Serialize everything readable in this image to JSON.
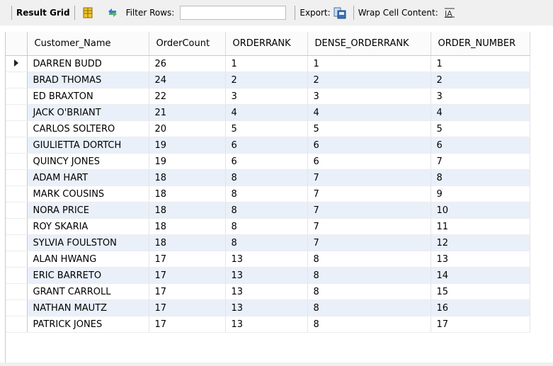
{
  "toolbar": {
    "result_grid_label": "Result Grid",
    "filter_rows_label": "Filter Rows:",
    "filter_rows_value": "",
    "export_label": "Export:",
    "wrap_cell_label": "Wrap Cell Content:",
    "icons": [
      "grid-icon",
      "refresh-icon",
      "export-icon",
      "wrap-text-icon"
    ]
  },
  "grid": {
    "columns": [
      "Customer_Name",
      "OrderCount",
      "ORDERRANK",
      "DENSE_ORDERRANK",
      "ORDER_NUMBER"
    ],
    "rows": [
      [
        "DARREN BUDD",
        "26",
        "1",
        "1",
        "1"
      ],
      [
        "BRAD THOMAS",
        "24",
        "2",
        "2",
        "2"
      ],
      [
        "ED BRAXTON",
        "22",
        "3",
        "3",
        "3"
      ],
      [
        "JACK O'BRIANT",
        "21",
        "4",
        "4",
        "4"
      ],
      [
        "CARLOS SOLTERO",
        "20",
        "5",
        "5",
        "5"
      ],
      [
        "GIULIETTA DORTCH",
        "19",
        "6",
        "6",
        "6"
      ],
      [
        "QUINCY JONES",
        "19",
        "6",
        "6",
        "7"
      ],
      [
        "ADAM HART",
        "18",
        "8",
        "7",
        "8"
      ],
      [
        "MARK COUSINS",
        "18",
        "8",
        "7",
        "9"
      ],
      [
        "NORA PRICE",
        "18",
        "8",
        "7",
        "10"
      ],
      [
        "ROY SKARIA",
        "18",
        "8",
        "7",
        "11"
      ],
      [
        "SYLVIA FOULSTON",
        "18",
        "8",
        "7",
        "12"
      ],
      [
        "ALAN HWANG",
        "17",
        "13",
        "8",
        "13"
      ],
      [
        "ERIC BARRETO",
        "17",
        "13",
        "8",
        "14"
      ],
      [
        "GRANT CARROLL",
        "17",
        "13",
        "8",
        "15"
      ],
      [
        "NATHAN MAUTZ",
        "17",
        "13",
        "8",
        "16"
      ],
      [
        "PATRICK JONES",
        "17",
        "13",
        "8",
        "17"
      ]
    ],
    "selected_row": 0
  }
}
